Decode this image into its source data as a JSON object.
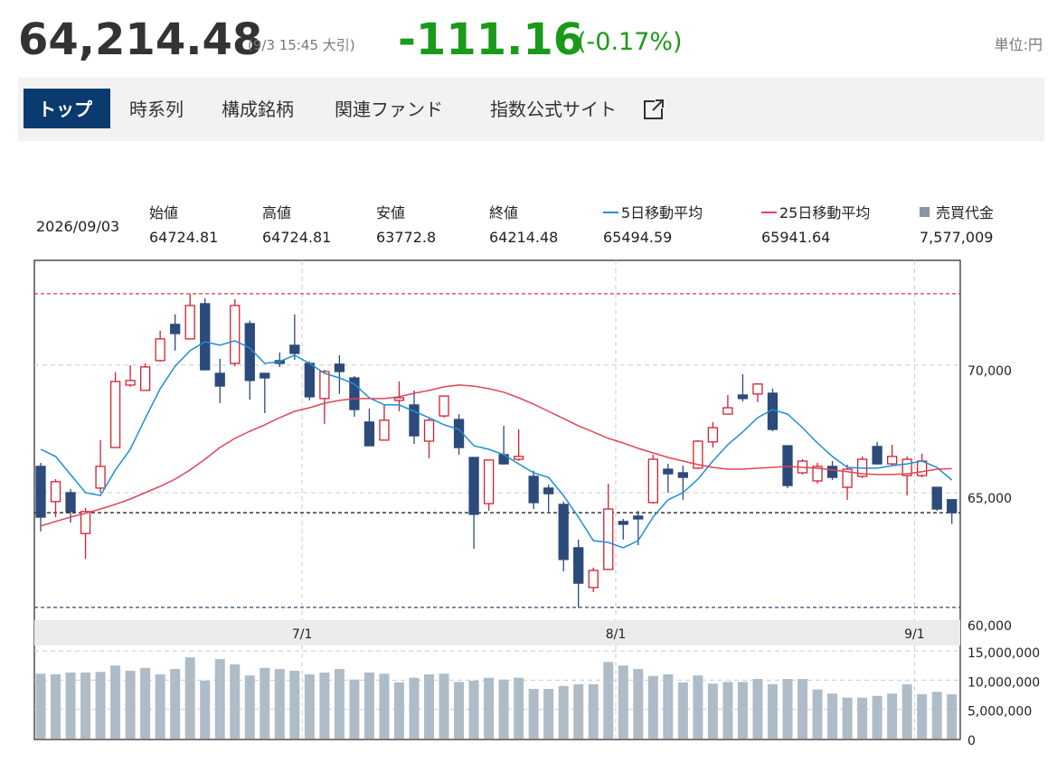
{
  "header": {
    "price": "64,214.48",
    "timestamp": "(9/3 15:45 大引)",
    "change": "-111.16",
    "change_pct": "(-0.17%)",
    "unit": "単位:円"
  },
  "tabs": [
    "トップ",
    "時系列",
    "構成銘柄",
    "関連ファンド",
    "指数公式サイト"
  ],
  "summary": {
    "date": "2026/09/03",
    "items": [
      {
        "label": "始値",
        "value": "64724.81"
      },
      {
        "label": "高値",
        "value": "64724.81"
      },
      {
        "label": "安値",
        "value": "63772.8"
      },
      {
        "label": "終値",
        "value": "64214.48"
      }
    ],
    "legend_values": [
      "65494.59",
      "65941.64",
      "7,577,009"
    ]
  },
  "chart_data": {
    "type": "candlestick",
    "categories": [
      null,
      null,
      null,
      null,
      null,
      null,
      null,
      null,
      null,
      null,
      null,
      null,
      null,
      null,
      null,
      null,
      null,
      null,
      "7/1",
      null,
      null,
      null,
      null,
      null,
      null,
      null,
      null,
      null,
      null,
      null,
      null,
      null,
      null,
      null,
      null,
      null,
      null,
      null,
      null,
      "8/1",
      null,
      null,
      null,
      null,
      null,
      null,
      null,
      null,
      null,
      null,
      null,
      null,
      null,
      null,
      null,
      null,
      null,
      null,
      null,
      "9/1",
      null,
      null
    ],
    "ohlc": {
      "open": [
        66030,
        64650,
        65000,
        63400,
        65180,
        66770,
        69220,
        69010,
        70180,
        71600,
        71030,
        72410,
        69680,
        70070,
        71630,
        69680,
        70180,
        70780,
        70070,
        68690,
        70040,
        69500,
        67770,
        67060,
        68620,
        68440,
        67020,
        68010,
        67870,
        66380,
        64570,
        66490,
        66310,
        65640,
        65180,
        64540,
        62840,
        61280,
        61990,
        63870,
        64080,
        64610,
        65920,
        65780,
        65960,
        66990,
        68080,
        68830,
        68870,
        68900,
        66840,
        65780,
        65460,
        66030,
        65210,
        65640,
        66810,
        66130,
        65670,
        65670,
        65210,
        64724.81
      ],
      "high": [
        66170,
        65530,
        65140,
        64400,
        67060,
        69720,
        70000,
        70070,
        71350,
        71990,
        72800,
        72620,
        70250,
        72590,
        71740,
        69680,
        70500,
        71990,
        70140,
        69820,
        70390,
        69570,
        68300,
        68470,
        69360,
        69010,
        67940,
        68790,
        68080,
        66380,
        66280,
        67620,
        67480,
        65850,
        65320,
        64650,
        63160,
        62060,
        65350,
        63970,
        64290,
        66490,
        66130,
        66060,
        67060,
        67770,
        68830,
        69650,
        69290,
        69080,
        66840,
        66310,
        66170,
        66240,
        66100,
        66420,
        66990,
        66880,
        66420,
        66530,
        65210,
        64724.81
      ],
      "low": [
        63480,
        64040,
        63830,
        62410,
        65000,
        66770,
        69150,
        69010,
        70140,
        70570,
        71030,
        69790,
        68510,
        69960,
        68650,
        68120,
        69930,
        70210,
        68620,
        67700,
        68870,
        67980,
        66840,
        67060,
        68190,
        66910,
        66350,
        67940,
        66490,
        62800,
        64290,
        66100,
        66240,
        64360,
        64260,
        61910,
        60500,
        61100,
        61990,
        63160,
        62940,
        64570,
        65000,
        64720,
        65920,
        66770,
        68080,
        68580,
        68550,
        67410,
        65180,
        65710,
        65350,
        65500,
        64720,
        65570,
        66100,
        66060,
        64890,
        65600,
        64290,
        63772.8
      ],
      "close": [
        64040,
        65430,
        64260,
        64260,
        66030,
        69360,
        69400,
        69930,
        71030,
        71240,
        72340,
        69820,
        69180,
        72340,
        69400,
        69500,
        70070,
        70460,
        68760,
        69750,
        69750,
        68260,
        66840,
        67840,
        68720,
        67230,
        67840,
        68790,
        66770,
        64150,
        66280,
        66130,
        66420,
        64610,
        64960,
        62380,
        61450,
        61950,
        64360,
        63760,
        63970,
        66310,
        65740,
        65600,
        67020,
        67550,
        68330,
        68690,
        69260,
        67480,
        65280,
        66240,
        66030,
        65600,
        65920,
        66310,
        66130,
        66420,
        66310,
        66240,
        64360,
        64214.48
      ],
      "up_color": "#d0212f",
      "down_color": "#2c4a7a"
    },
    "series": [
      {
        "name": "5日移動平均",
        "color": "#1e8fd6",
        "values": [
          66700,
          66420,
          65710,
          65000,
          64890,
          65890,
          66700,
          67910,
          69080,
          69960,
          70570,
          70920,
          70780,
          70960,
          70670,
          70070,
          70140,
          70390,
          70070,
          69680,
          69500,
          69260,
          68720,
          68440,
          68440,
          68190,
          67940,
          67660,
          67480,
          66840,
          66700,
          66490,
          66130,
          65780,
          65600,
          64890,
          64040,
          63120,
          63050,
          62840,
          63120,
          64040,
          64720,
          65000,
          65530,
          66240,
          66880,
          67380,
          67940,
          68260,
          68080,
          67550,
          66950,
          66420,
          65990,
          65960,
          65960,
          66060,
          66130,
          66240,
          65990,
          65494.59
        ]
      },
      {
        "name": "25日移動平均",
        "color": "#e0455a",
        "values": [
          63690,
          63870,
          64040,
          64190,
          64360,
          64540,
          64750,
          65000,
          65250,
          65530,
          65890,
          66310,
          66770,
          67130,
          67410,
          67660,
          67940,
          68190,
          68330,
          68510,
          68620,
          68690,
          68690,
          68690,
          68760,
          68900,
          69010,
          69150,
          69220,
          69180,
          69080,
          68940,
          68720,
          68470,
          68190,
          67910,
          67620,
          67380,
          67130,
          66950,
          66740,
          66560,
          66380,
          66240,
          66100,
          65990,
          65920,
          65920,
          65960,
          65990,
          66030,
          65990,
          65960,
          65890,
          65820,
          65740,
          65710,
          65710,
          65740,
          65820,
          65920,
          65941.64
        ]
      },
      {
        "name": "売買代金",
        "color": "#aebcc8",
        "axis": "y2",
        "values": [
          11100000,
          11000000,
          11300000,
          11300000,
          11400000,
          12500000,
          11600000,
          12100000,
          11000000,
          11900000,
          13900000,
          9900000,
          13600000,
          12700000,
          10800000,
          12100000,
          11900000,
          11600000,
          11000000,
          11300000,
          11900000,
          10100000,
          11300000,
          11100000,
          9600000,
          10400000,
          11000000,
          11100000,
          9700000,
          9900000,
          10400000,
          10100000,
          10400000,
          8500000,
          8500000,
          9000000,
          9300000,
          9300000,
          13100000,
          12500000,
          11900000,
          10700000,
          11000000,
          9600000,
          10800000,
          9400000,
          9700000,
          9700000,
          10200000,
          9300000,
          10200000,
          10200000,
          8400000,
          7700000,
          7000000,
          7000000,
          7300000,
          7700000,
          9300000,
          7600000,
          8000000,
          7577009
        ]
      }
    ],
    "reference_lines": [
      {
        "value": 72800,
        "color": "#d0212f"
      },
      {
        "value": 60500,
        "color": "#2c4a7a"
      },
      {
        "value": 64214.48,
        "color": "#111111"
      }
    ],
    "ylim": [
      60000,
      74110
    ],
    "yticks": [
      {
        "value": 60000,
        "label": "60,000"
      },
      {
        "value": 65000,
        "label": "65,000"
      },
      {
        "value": 70000,
        "label": "70,000"
      }
    ],
    "y2lim": [
      0,
      15000000
    ],
    "y2ticks": [
      0,
      {
        "value": 5000000,
        "label": "5,000,000"
      },
      {
        "value": 10000000,
        "label": "10,000,000"
      },
      {
        "value": 15000000,
        "label": "15,000,000"
      }
    ],
    "grid": true
  }
}
